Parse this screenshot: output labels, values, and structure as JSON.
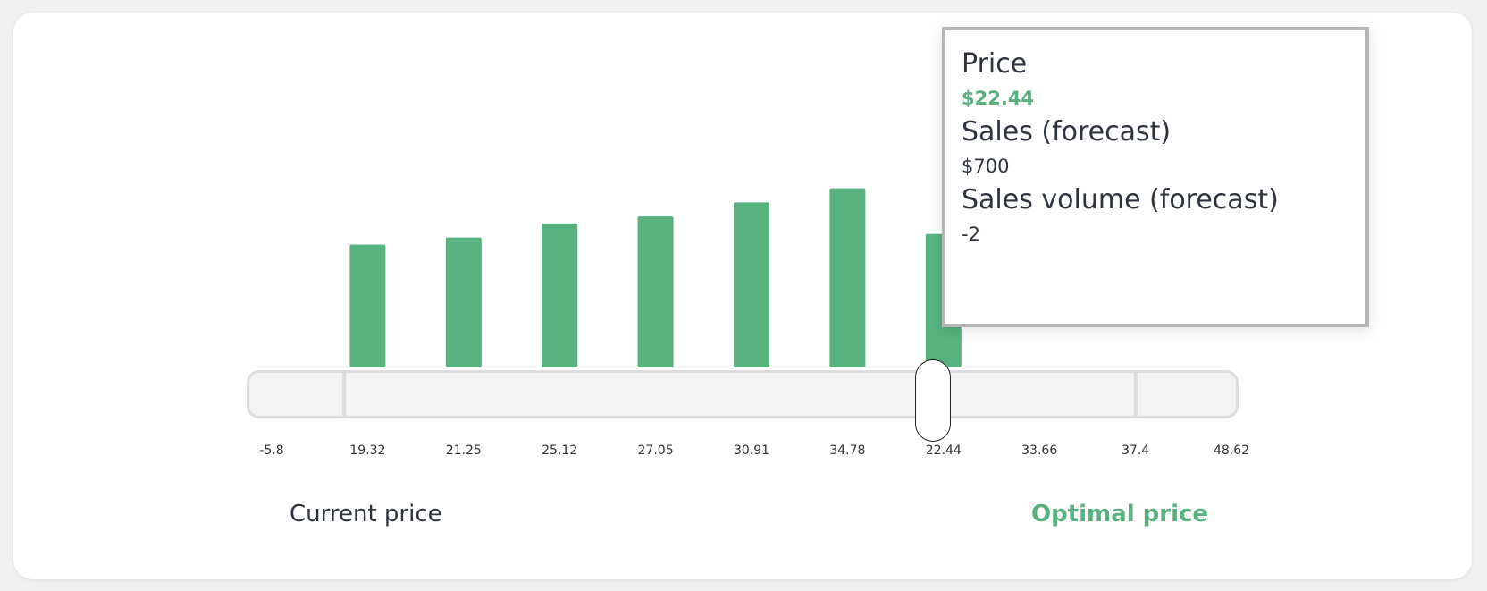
{
  "colors": {
    "bar": "#57b27e",
    "accent": "#57b27e",
    "text": "#2e3340",
    "track": "#f3f3f3",
    "track_border": "#dcdcdc"
  },
  "chart_data": {
    "type": "bar",
    "slider_tick_labels": [
      "-5.8",
      "19.32",
      "21.25",
      "25.12",
      "27.05",
      "30.91",
      "34.78",
      "22.44",
      "33.66",
      "37.4",
      "48.62"
    ],
    "bar_values": [
      700,
      740,
      820,
      860,
      940,
      1020,
      760
    ],
    "bar_tick_indices": [
      1,
      2,
      3,
      4,
      5,
      6,
      7
    ],
    "selected_index": 7,
    "ylim": [
      0,
      1400
    ]
  },
  "tooltip": {
    "price_label": "Price",
    "price_value": "$22.44",
    "sales_label": "Sales (forecast)",
    "sales_value": "$700",
    "volume_label": "Sales volume (forecast)",
    "volume_value": "-2"
  },
  "labels": {
    "current_price": "Current price",
    "optimal_price": "Optimal price"
  }
}
